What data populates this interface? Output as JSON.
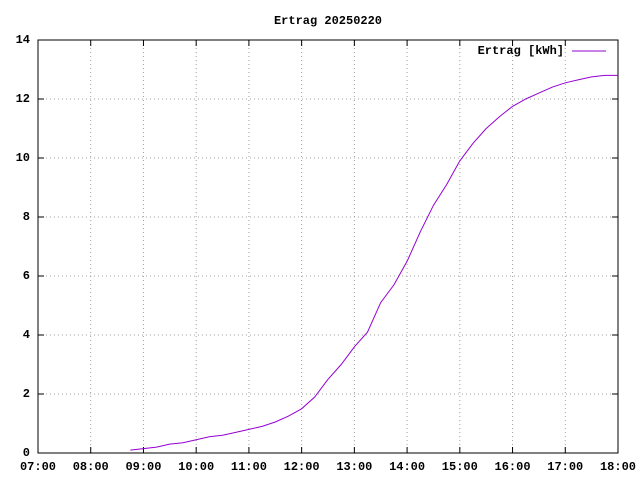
{
  "chart_data": {
    "type": "line",
    "title": "Ertrag 20250220",
    "x": [
      8.75,
      9.25,
      9.5,
      9.75,
      10.0,
      10.25,
      10.5,
      10.75,
      11.0,
      11.25,
      11.5,
      11.75,
      12.0,
      12.25,
      12.5,
      12.75,
      13.0,
      13.25,
      13.5,
      13.75,
      14.0,
      14.25,
      14.5,
      14.75,
      15.0,
      15.25,
      15.5,
      15.75,
      16.0,
      16.25,
      16.5,
      16.75,
      17.0,
      17.25,
      17.5,
      17.75,
      18.0
    ],
    "series": [
      {
        "name": "Ertrag [kWh]",
        "color": "#9400d3",
        "values": [
          0.1,
          0.2,
          0.3,
          0.35,
          0.45,
          0.55,
          0.6,
          0.7,
          0.8,
          0.9,
          1.05,
          1.25,
          1.5,
          1.9,
          2.5,
          3.0,
          3.6,
          4.1,
          5.1,
          5.7,
          6.5,
          7.5,
          8.4,
          9.1,
          9.9,
          10.5,
          11.0,
          11.4,
          11.75,
          12.0,
          12.2,
          12.4,
          12.55,
          12.65,
          12.75,
          12.8,
          12.8
        ]
      }
    ],
    "xlim": [
      7,
      18
    ],
    "xticks": [
      {
        "value": 7,
        "label": "07:00"
      },
      {
        "value": 8,
        "label": "08:00"
      },
      {
        "value": 9,
        "label": "09:00"
      },
      {
        "value": 10,
        "label": "10:00"
      },
      {
        "value": 11,
        "label": "11:00"
      },
      {
        "value": 12,
        "label": "12:00"
      },
      {
        "value": 13,
        "label": "13:00"
      },
      {
        "value": 14,
        "label": "14:00"
      },
      {
        "value": 15,
        "label": "15:00"
      },
      {
        "value": 16,
        "label": "16:00"
      },
      {
        "value": 17,
        "label": "17:00"
      },
      {
        "value": 18,
        "label": "18:00"
      }
    ],
    "ylim": [
      0,
      14
    ],
    "yticks": [
      0,
      2,
      4,
      6,
      8,
      10,
      12,
      14
    ],
    "grid": true,
    "legend": "top-right"
  }
}
